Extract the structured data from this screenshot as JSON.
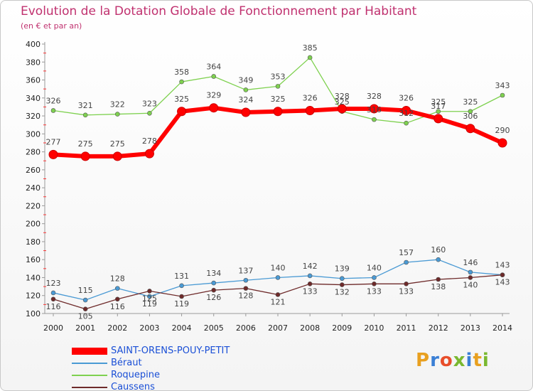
{
  "chart_data": {
    "type": "line",
    "title": "Evolution de la Dotation Globale de Fonctionnement par Habitant",
    "subtitle": "(en € et par an)",
    "categories": [
      "2000",
      "2001",
      "2002",
      "2003",
      "2004",
      "2005",
      "2006",
      "2007",
      "2008",
      "2009",
      "2010",
      "2011",
      "2012",
      "2013",
      "2014"
    ],
    "ylim": [
      100,
      400
    ],
    "yticks": [
      100,
      120,
      140,
      160,
      180,
      200,
      220,
      240,
      260,
      280,
      300,
      320,
      340,
      360,
      380,
      400
    ],
    "grid": false,
    "legend_position": "bottom-left",
    "series": [
      {
        "name": "SAINT-ORENS-POUY-PETIT",
        "color": "#ff0000",
        "values": [
          277,
          275,
          275,
          278,
          325,
          329,
          324,
          325,
          326,
          328,
          328,
          326,
          317,
          306,
          290
        ],
        "labels": [
          "277",
          "275",
          "275",
          "278",
          "325",
          "329",
          "324",
          "325",
          "326",
          "328",
          "328",
          "326",
          "317",
          "306",
          "290"
        ]
      },
      {
        "name": "Béraut",
        "color": "#4a9ad4",
        "values": [
          123,
          115,
          128,
          119,
          131,
          134,
          137,
          140,
          142,
          139,
          140,
          157,
          160,
          146,
          143
        ],
        "labels": [
          "123",
          "115",
          "128",
          "119",
          "131",
          "134",
          "137",
          "140",
          "142",
          "139",
          "140",
          "157",
          "160",
          "146",
          "143"
        ]
      },
      {
        "name": "Roquepine",
        "color": "#7ed14f",
        "values": [
          326,
          321,
          322,
          323,
          358,
          364,
          349,
          353,
          385,
          325,
          316,
          312,
          325,
          325,
          343
        ],
        "labels": [
          "326",
          "321",
          "322",
          "323",
          "358",
          "364",
          "349",
          "353",
          "385",
          "325",
          "316",
          "312",
          "325",
          "325",
          "343"
        ]
      },
      {
        "name": "Caussens",
        "color": "#6e2a2a",
        "values": [
          116,
          105,
          116,
          125,
          119,
          126,
          128,
          121,
          133,
          132,
          133,
          133,
          138,
          140,
          143
        ],
        "labels": [
          "116",
          "105",
          "116",
          "125",
          "119",
          "126",
          "128",
          "121",
          "133",
          "132",
          "133",
          "133",
          "138",
          "140",
          "143"
        ]
      }
    ]
  },
  "brand": {
    "letters": [
      "P",
      "r",
      "o",
      "x",
      "i",
      "t",
      "i"
    ],
    "colors": [
      "#e8a020",
      "#3a7fd5",
      "#e84e2a",
      "#7ab830",
      "#3a7fd5",
      "#e8a020",
      "#7ab830"
    ]
  }
}
